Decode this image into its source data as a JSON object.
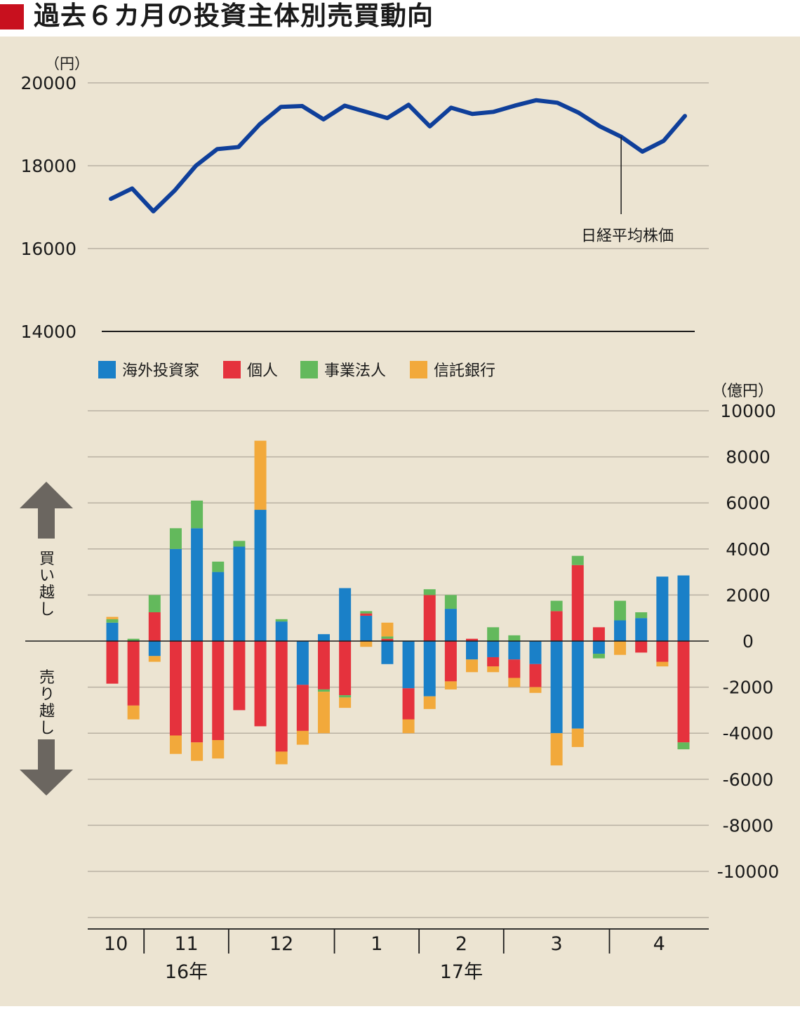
{
  "title": "過去６カ月の投資主体別売買動向",
  "colors": {
    "background": "#ece4d2",
    "title_mark": "#c8101e",
    "line": "#0f3f9a",
    "foreign": "#1a80c8",
    "individual": "#e5323d",
    "corporate": "#63b95c",
    "trust": "#f2a93b",
    "arrow": "#6b6660"
  },
  "chart_data": [
    {
      "type": "line",
      "name": "nikkei",
      "yunit": "（円）",
      "series": [
        {
          "name": "日経平均株価",
          "values": [
            17200,
            17450,
            16900,
            17400,
            18000,
            18400,
            18450,
            19000,
            19420,
            19440,
            19120,
            19450,
            19300,
            19150,
            19470,
            18950,
            19400,
            19250,
            19300,
            19450,
            19580,
            19520,
            19280,
            18950,
            18700,
            18340,
            18600,
            19200
          ]
        }
      ],
      "yticks": [
        "20000",
        "18000",
        "16000",
        "14000"
      ],
      "ylim": [
        14000,
        20000
      ],
      "annotation": "日経平均株価",
      "annotation_index": 24,
      "grid": true
    },
    {
      "type": "bar",
      "name": "flows",
      "stacked": true,
      "yunit": "（億円）",
      "ylim": [
        -12000,
        10000
      ],
      "yticks": [
        "10000",
        "8000",
        "6000",
        "4000",
        "2000",
        "0",
        "-2000",
        "-4000",
        "-6000",
        "-8000",
        "-10000"
      ],
      "legend": [
        "海外投資家",
        "個人",
        "事業法人",
        "信託銀行"
      ],
      "legend_position": "top-left",
      "series": [
        {
          "name": "海外投資家",
          "values": [
            800,
            0,
            -650,
            4000,
            4900,
            3000,
            4100,
            5700,
            850,
            -1900,
            300,
            2300,
            1100,
            -1000,
            -2050,
            -2400,
            1400,
            -800,
            -700,
            -800,
            -1000,
            -4000,
            -3800,
            -550,
            900,
            1000,
            2800,
            2850
          ]
        },
        {
          "name": "個人",
          "values": [
            -1850,
            -2800,
            1250,
            -4100,
            -4400,
            -4300,
            -3000,
            -3700,
            -4800,
            -2000,
            -2100,
            -2350,
            100,
            100,
            -1350,
            2000,
            -1750,
            100,
            -400,
            -800,
            -1000,
            1300,
            3300,
            600,
            0,
            -500,
            -900,
            -4400
          ]
        },
        {
          "name": "事業法人",
          "values": [
            150,
            100,
            750,
            900,
            1200,
            450,
            250,
            0,
            100,
            0,
            -100,
            -100,
            100,
            100,
            0,
            250,
            600,
            0,
            600,
            250,
            0,
            450,
            400,
            -200,
            850,
            250,
            0,
            -300
          ]
        },
        {
          "name": "信託銀行",
          "values": [
            100,
            -600,
            -250,
            -800,
            -800,
            -800,
            0,
            3000,
            -550,
            -600,
            -1800,
            -450,
            -250,
            600,
            -600,
            -550,
            -350,
            -550,
            -250,
            -400,
            -250,
            -1400,
            -800,
            0,
            -600,
            0,
            -200,
            0
          ]
        }
      ],
      "side_labels": {
        "buy": "買い越し",
        "sell": "売り越し"
      },
      "months": [
        {
          "label": "10",
          "from": 0,
          "to": 2
        },
        {
          "label": "11",
          "from": 2,
          "to": 6
        },
        {
          "label": "12",
          "from": 6,
          "to": 11
        },
        {
          "label": "1",
          "from": 11,
          "to": 15
        },
        {
          "label": "2",
          "from": 15,
          "to": 19
        },
        {
          "label": "3",
          "from": 19,
          "to": 24
        },
        {
          "label": "4",
          "from": 24,
          "to": 28
        }
      ],
      "years": [
        {
          "label": "16年",
          "month": "11"
        },
        {
          "label": "17年",
          "month": "2"
        }
      ],
      "grid": true
    }
  ]
}
